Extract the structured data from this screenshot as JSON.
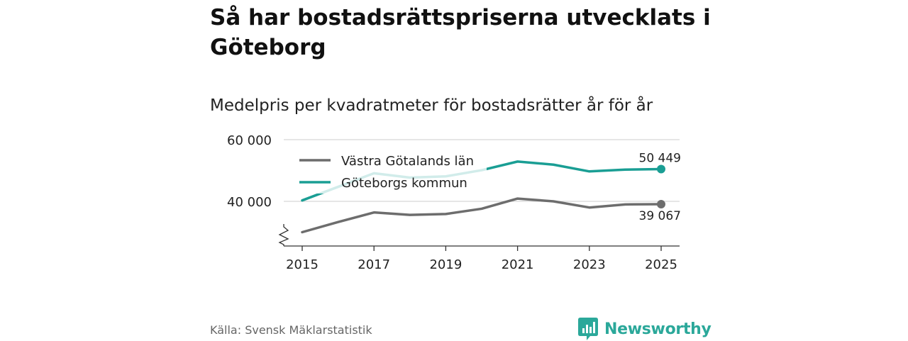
{
  "page": {
    "title": "Så har bostadsrättspriserna utvecklats i Göteborg",
    "subtitle": "Medelpris per kvadratmeter för bostadsrätter år för år",
    "source": "Källa: Svensk Mäklarstatistik",
    "brand": "Newsworthy"
  },
  "chart_data": {
    "type": "line",
    "title": "Så har bostadsrättspriserna utvecklats i Göteborg",
    "subtitle": "Medelpris per kvadratmeter för bostadsrätter år för år",
    "xlabel": "",
    "ylabel": "",
    "x": [
      2015,
      2016,
      2017,
      2018,
      2019,
      2020,
      2021,
      2022,
      2023,
      2024,
      2025
    ],
    "xticks": [
      2015,
      2017,
      2019,
      2021,
      2023,
      2025
    ],
    "xtick_labels": [
      "2015",
      "2017",
      "2019",
      "2021",
      "2023",
      "2025"
    ],
    "yticks": [
      40000,
      60000
    ],
    "ytick_labels": [
      "40 000",
      "60 000"
    ],
    "ylim": [
      30000,
      60000
    ],
    "axis_break": true,
    "grid": true,
    "legend_position": "top-left",
    "series": [
      {
        "name": "Västra Götalands län",
        "color": "#6d6d6d",
        "values": [
          30000,
          33300,
          36400,
          35600,
          35900,
          37600,
          40900,
          40000,
          38000,
          39000,
          39067
        ],
        "end_label": "39 067"
      },
      {
        "name": "Göteborgs kommun",
        "color": "#1a9e94",
        "values": [
          40300,
          44700,
          49100,
          47700,
          48100,
          50100,
          52900,
          51900,
          49700,
          50300,
          50449
        ],
        "end_label": "50 449"
      }
    ]
  }
}
